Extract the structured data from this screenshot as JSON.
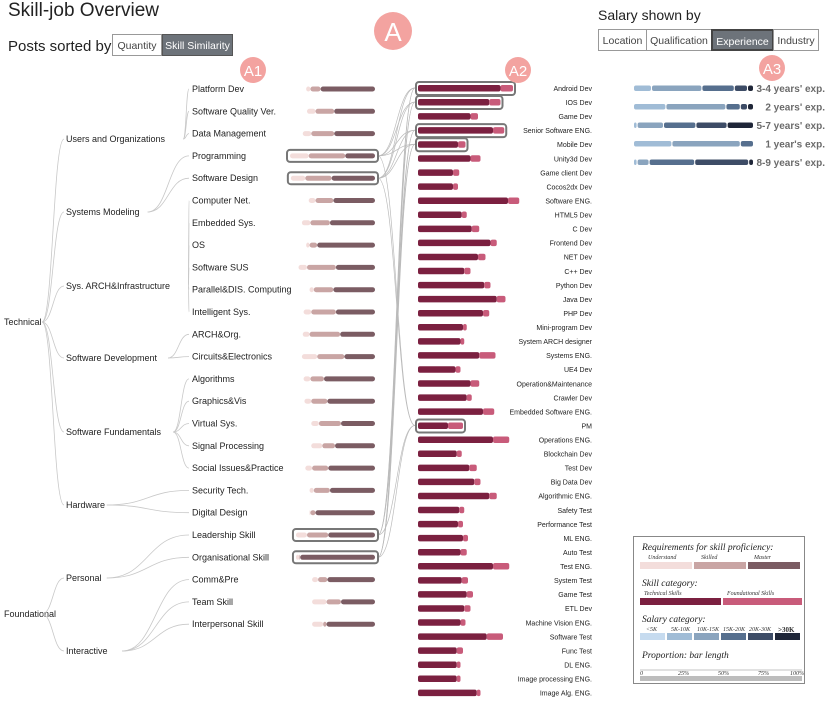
{
  "title": "Skill-job Overview",
  "sort": {
    "label": "Posts sorted by",
    "options": [
      "Quantity",
      "Skill Similarity"
    ],
    "active": "Skill Similarity"
  },
  "salary": {
    "label": "Salary shown by",
    "options": [
      "Location",
      "Qualification",
      "Experience",
      "Industry"
    ],
    "active": "Experience"
  },
  "markers": {
    "A": "A",
    "A1": "A1",
    "A2": "A2",
    "A3": "A3"
  },
  "colors": {
    "understand": "#f3dddb",
    "skilled": "#c9a5a4",
    "master": "#7b5c63",
    "technical": "#7b2040",
    "foundational": "#c85b7a",
    "marker": "#f08a8a"
  },
  "chart_data": {
    "type": "bar",
    "tree": {
      "root": [
        {
          "name": "Technical",
          "children": [
            {
              "name": "Users and Organizations",
              "skills": [
                "Platform Dev",
                "Software Quality Ver.",
                "Data Management"
              ]
            },
            {
              "name": "Systems Modeling",
              "skills": [
                "Programming",
                "Software Design"
              ]
            },
            {
              "name": "Sys. ARCH&Infrastructure",
              "skills": [
                "Computer Net.",
                "Embedded Sys.",
                "OS",
                "Software SUS",
                "Parallel&DIS. Computing",
                "Intelligent Sys."
              ]
            },
            {
              "name": "Software Development",
              "skills": [
                "ARCH&Org.",
                "Circuits&Electronics"
              ]
            },
            {
              "name": "Software Fundamentals",
              "skills": [
                "Algorithms",
                "Graphics&Vis",
                "Virtual Sys.",
                "Signal Processing",
                "Social Issues&Practice"
              ]
            },
            {
              "name": "Hardware",
              "skills": [
                "Security Tech.",
                "Digital Design"
              ]
            }
          ]
        },
        {
          "name": "Foundational",
          "children": [
            {
              "name": "Personal",
              "skills": [
                "Leadership Skill",
                "Organisational Skill"
              ]
            },
            {
              "name": "Interactive",
              "skills": [
                "Comm&Pre",
                "Team Skill",
                "Interpersonal Skill"
              ]
            }
          ]
        }
      ]
    },
    "skills": [
      {
        "name": "Platform Dev",
        "understand": 0.05,
        "skilled": 0.12,
        "master": 0.64,
        "highlight": false
      },
      {
        "name": "Software Quality Ver.",
        "understand": 0.1,
        "skilled": 0.22,
        "master": 0.48,
        "highlight": false
      },
      {
        "name": "Data Management",
        "understand": 0.1,
        "skilled": 0.27,
        "master": 0.48,
        "highlight": false
      },
      {
        "name": "Programming",
        "understand": 0.22,
        "skilled": 0.43,
        "master": 0.35,
        "highlight": true
      },
      {
        "name": "Software Design",
        "understand": 0.17,
        "skilled": 0.31,
        "master": 0.51,
        "highlight": true
      },
      {
        "name": "Computer Net.",
        "understand": 0.08,
        "skilled": 0.21,
        "master": 0.49,
        "highlight": false
      },
      {
        "name": "Embedded Sys.",
        "understand": 0.1,
        "skilled": 0.23,
        "master": 0.53,
        "highlight": false
      },
      {
        "name": "OS",
        "understand": 0.04,
        "skilled": 0.09,
        "master": 0.68,
        "highlight": false
      },
      {
        "name": "Software SUS",
        "understand": 0.1,
        "skilled": 0.34,
        "master": 0.46,
        "highlight": false
      },
      {
        "name": "Parallel&DIS. Computing",
        "understand": 0.05,
        "skilled": 0.23,
        "master": 0.49,
        "highlight": false
      },
      {
        "name": "Intelligent Sys.",
        "understand": 0.09,
        "skilled": 0.29,
        "master": 0.46,
        "highlight": false
      },
      {
        "name": "ARCH&Org.",
        "understand": 0.08,
        "skilled": 0.36,
        "master": 0.41,
        "highlight": false
      },
      {
        "name": "Circuits&Electronics",
        "understand": 0.18,
        "skilled": 0.32,
        "master": 0.36,
        "highlight": false
      },
      {
        "name": "Algorithms",
        "understand": 0.08,
        "skilled": 0.16,
        "master": 0.6,
        "highlight": false
      },
      {
        "name": "Graphics&Vis",
        "understand": 0.08,
        "skilled": 0.19,
        "master": 0.56,
        "highlight": false
      },
      {
        "name": "Virtual Sys.",
        "understand": 0.09,
        "skilled": 0.26,
        "master": 0.4,
        "highlight": false
      },
      {
        "name": "Signal Processing",
        "understand": 0.13,
        "skilled": 0.15,
        "master": 0.47,
        "highlight": false
      },
      {
        "name": "Social Issues&Practice",
        "understand": 0.08,
        "skilled": 0.19,
        "master": 0.55,
        "highlight": false
      },
      {
        "name": "Security Tech.",
        "understand": 0.05,
        "skilled": 0.19,
        "master": 0.53,
        "highlight": false
      },
      {
        "name": "Digital Design",
        "understand": 0.01,
        "skilled": 0.06,
        "master": 0.7,
        "highlight": false
      },
      {
        "name": "Leadership Skill",
        "understand": 0.13,
        "skilled": 0.25,
        "master": 0.55,
        "highlight": true
      },
      {
        "name": "Organisational Skill",
        "understand": 0.04,
        "skilled": 0.01,
        "master": 0.88,
        "highlight": true
      },
      {
        "name": "Comm&Pre",
        "understand": 0.07,
        "skilled": 0.11,
        "master": 0.56,
        "highlight": false
      },
      {
        "name": "Team Skill",
        "understand": 0.17,
        "skilled": 0.17,
        "master": 0.4,
        "highlight": false
      },
      {
        "name": "Interpersonal Skill",
        "understand": 0.13,
        "skilled": 0.04,
        "master": 0.57,
        "highlight": false
      }
    ],
    "jobs": [
      {
        "name": "Android Dev",
        "technical": 66,
        "foundational": 10,
        "highlight": true
      },
      {
        "name": "IOS Dev",
        "technical": 57,
        "foundational": 9,
        "highlight": true
      },
      {
        "name": "Game Dev",
        "technical": 42,
        "foundational": 6,
        "highlight": false
      },
      {
        "name": "Senior Software ENG.",
        "technical": 60,
        "foundational": 9,
        "highlight": true
      },
      {
        "name": "Mobile Dev",
        "technical": 32,
        "foundational": 6,
        "highlight": true
      },
      {
        "name": "Unity3d Dev",
        "technical": 42,
        "foundational": 8,
        "highlight": false
      },
      {
        "name": "Game client Dev",
        "technical": 28,
        "foundational": 5,
        "highlight": false
      },
      {
        "name": "Cocos2dx Dev",
        "technical": 28,
        "foundational": 4,
        "highlight": false
      },
      {
        "name": "Software ENG.",
        "technical": 72,
        "foundational": 9,
        "highlight": false
      },
      {
        "name": "HTML5 Dev",
        "technical": 35,
        "foundational": 4,
        "highlight": false
      },
      {
        "name": "C Dev",
        "technical": 43,
        "foundational": 6,
        "highlight": false
      },
      {
        "name": "Frontend Dev",
        "technical": 58,
        "foundational": 5,
        "highlight": false
      },
      {
        "name": "NET Dev",
        "technical": 48,
        "foundational": 6,
        "highlight": false
      },
      {
        "name": "C++ Dev",
        "technical": 37,
        "foundational": 5,
        "highlight": false
      },
      {
        "name": "Python Dev",
        "technical": 53,
        "foundational": 5,
        "highlight": false
      },
      {
        "name": "Java Dev",
        "technical": 63,
        "foundational": 7,
        "highlight": false
      },
      {
        "name": "PHP Dev",
        "technical": 52,
        "foundational": 5,
        "highlight": false
      },
      {
        "name": "Mini-program Dev",
        "technical": 36,
        "foundational": 3,
        "highlight": false
      },
      {
        "name": "System ARCH designer",
        "technical": 34,
        "foundational": 3,
        "highlight": false
      },
      {
        "name": "Systems ENG.",
        "technical": 49,
        "foundational": 13,
        "highlight": false
      },
      {
        "name": "UE4 Dev",
        "technical": 30,
        "foundational": 4,
        "highlight": false
      },
      {
        "name": "Operation&Maintenance",
        "technical": 42,
        "foundational": 7,
        "highlight": false
      },
      {
        "name": "Crawler Dev",
        "technical": 39,
        "foundational": 4,
        "highlight": false
      },
      {
        "name": "Embedded Software ENG.",
        "technical": 52,
        "foundational": 9,
        "highlight": false
      },
      {
        "name": "PM",
        "technical": 24,
        "foundational": 12,
        "highlight": true
      },
      {
        "name": "Operations ENG.",
        "technical": 60,
        "foundational": 13,
        "highlight": false
      },
      {
        "name": "Blockchain Dev",
        "technical": 31,
        "foundational": 4,
        "highlight": false
      },
      {
        "name": "Test Dev",
        "technical": 41,
        "foundational": 6,
        "highlight": false
      },
      {
        "name": "Big Data Dev",
        "technical": 45,
        "foundational": 5,
        "highlight": false
      },
      {
        "name": "Algorithmic ENG.",
        "technical": 57,
        "foundational": 6,
        "highlight": false
      },
      {
        "name": "Safety Test",
        "technical": 33,
        "foundational": 4,
        "highlight": false
      },
      {
        "name": "Performance Test",
        "technical": 32,
        "foundational": 4,
        "highlight": false
      },
      {
        "name": "ML ENG.",
        "technical": 36,
        "foundational": 4,
        "highlight": false
      },
      {
        "name": "Auto Test",
        "technical": 34,
        "foundational": 5,
        "highlight": false
      },
      {
        "name": "Test ENG.",
        "technical": 60,
        "foundational": 13,
        "highlight": false
      },
      {
        "name": "System Test",
        "technical": 35,
        "foundational": 5,
        "highlight": false
      },
      {
        "name": "Game Test",
        "technical": 39,
        "foundational": 5,
        "highlight": false
      },
      {
        "name": "ETL Dev",
        "technical": 37,
        "foundational": 5,
        "highlight": false
      },
      {
        "name": "Machine Vision ENG.",
        "technical": 34,
        "foundational": 4,
        "highlight": false
      },
      {
        "name": "Software Test",
        "technical": 55,
        "foundational": 13,
        "highlight": false
      },
      {
        "name": "Func Test",
        "technical": 31,
        "foundational": 5,
        "highlight": false
      },
      {
        "name": "DL ENG.",
        "technical": 31,
        "foundational": 3,
        "highlight": false
      },
      {
        "name": "Image processing ENG.",
        "technical": 31,
        "foundational": 3,
        "highlight": false
      },
      {
        "name": "Image Alg. ENG.",
        "technical": 47,
        "foundational": 3,
        "highlight": false
      }
    ],
    "salary_rows": [
      {
        "label": "3-4 years' exp.",
        "segments": [
          0.15,
          0.42,
          0.27,
          0.11,
          0.05
        ]
      },
      {
        "label": "2 years' exp.",
        "segments": [
          0.27,
          0.5,
          0.12,
          0.06,
          0.05
        ]
      },
      {
        "label": "5-7 years' exp.",
        "segments": [
          0.03,
          0.22,
          0.27,
          0.26,
          0.22
        ]
      },
      {
        "label": "1 year's exp.",
        "segments": [
          0.32,
          0.57,
          0.11,
          0,
          0
        ]
      },
      {
        "label": "8-9 years' exp.",
        "segments": [
          0.03,
          0.1,
          0.38,
          0.45,
          0.04
        ]
      }
    ],
    "legend": {
      "proficiency_title": "Requirements for skill proficiency:",
      "proficiency": [
        "Understand",
        "Skilled",
        "Master"
      ],
      "category_title": "Skill category:",
      "category": [
        "Technical Skills",
        "Foundational Skills"
      ],
      "salary_title": "Salary category:",
      "salary_levels": [
        "<5K",
        "5K-10K",
        "10K-15K",
        "15K-20K",
        "20K-30K",
        ">30K"
      ],
      "salary_colors": [
        "#c6dbef",
        "#a0bcd6",
        "#8aa4be",
        "#566f8e",
        "#3d4c66",
        "#1f2638"
      ],
      "proportion_title": "Proportion: bar length",
      "proportion_ticks": [
        "0",
        "25%",
        "50%",
        "75%",
        "100%"
      ]
    }
  }
}
